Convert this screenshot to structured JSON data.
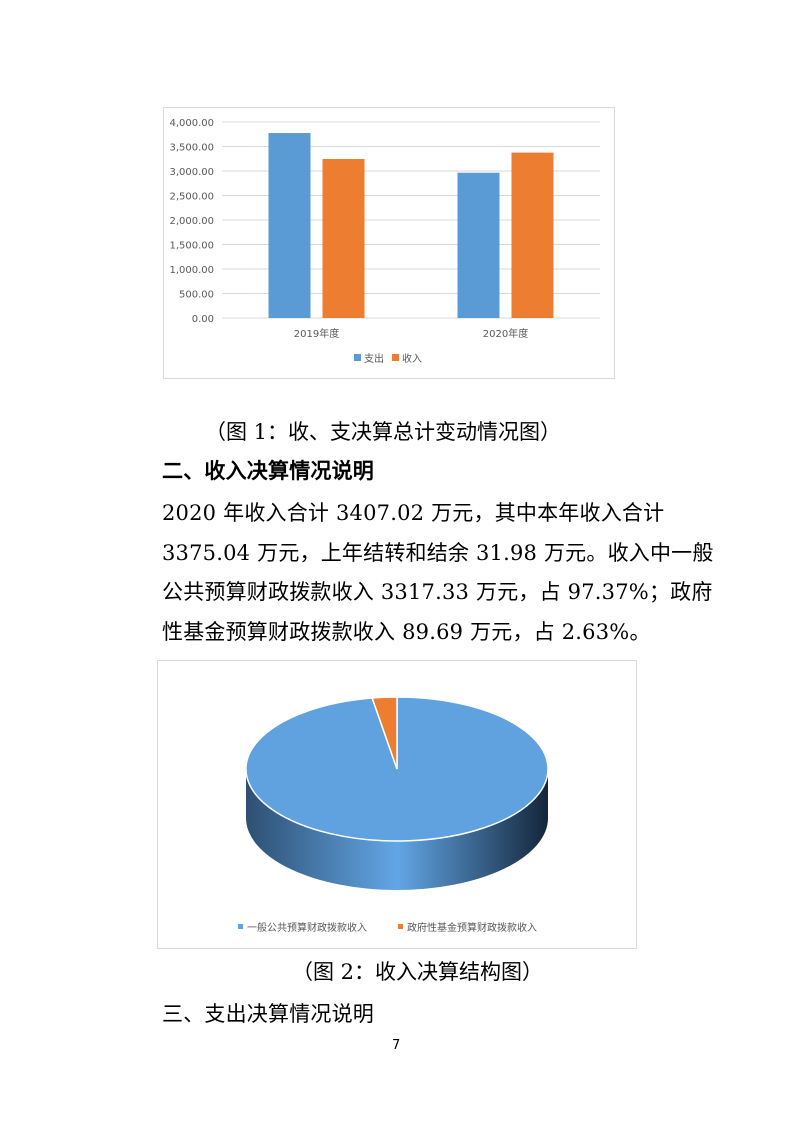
{
  "chart_data": [
    {
      "type": "bar",
      "categories": [
        "2019年度",
        "2020年度"
      ],
      "series": [
        {
          "name": "支出",
          "values": [
            3775,
            2965
          ],
          "color": "#5b9bd5"
        },
        {
          "name": "收入",
          "values": [
            3245,
            3375
          ],
          "color": "#ed7d31"
        }
      ],
      "ylim": [
        0,
        4000
      ],
      "yticks": [
        "0.00",
        "500.00",
        "1,000.00",
        "1,500.00",
        "2,000.00",
        "2,500.00",
        "3,000.00",
        "3,500.00",
        "4,000.00"
      ],
      "grid": true,
      "legend": "bottom"
    },
    {
      "type": "pie",
      "style": "3d",
      "categories": [
        "一般公共预算财政拨款收入",
        "政府性基金预算财政拨款收入"
      ],
      "values": [
        97.37,
        2.63
      ],
      "colors": [
        "#5fa2df",
        "#ed7d31"
      ],
      "legend": "bottom"
    }
  ],
  "captions": {
    "fig1": "（图 1：收、支决算总计变动情况图）",
    "fig2": "（图 2：收入决算结构图）"
  },
  "section2": {
    "heading": "二、收入决算情况说明",
    "lines": [
      "2020 年收入合计 3407.02 万元，其中本年收入合计",
      "3375.04 万元，上年结转和结余 31.98 万元。收入中一般",
      "公共预算财政拨款收入 3317.33 万元，占 97.37%；政府",
      "性基金预算财政拨款收入 89.69 万元，占 2.63%。"
    ]
  },
  "section3": {
    "heading": "三、支出决算情况说明"
  },
  "page_number": "7"
}
